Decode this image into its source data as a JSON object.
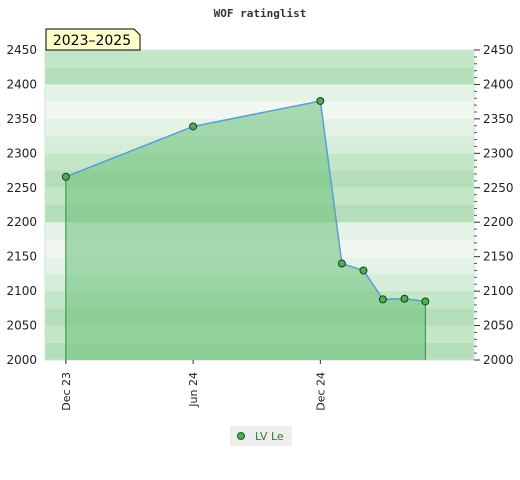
{
  "chart_data": {
    "type": "area",
    "title": "WOF ratinglist",
    "period_label": "2023–2025",
    "ylim": [
      2000,
      2450
    ],
    "yticks": [
      2000,
      2050,
      2100,
      2150,
      2200,
      2250,
      2300,
      2350,
      2400,
      2450
    ],
    "xlim": [
      "2023-11-01",
      "2025-07-10"
    ],
    "xticks": [
      {
        "date": "2023-12-01",
        "label": "Dec 23"
      },
      {
        "date": "2024-06-01",
        "label": "Jun 24"
      },
      {
        "date": "2024-12-01",
        "label": "Dec 24"
      }
    ],
    "series": [
      {
        "name": "LV Le",
        "color": "#5a9fd4",
        "fill": "#6cbf7a",
        "points": [
          {
            "x": "2023-12-01",
            "y": 2266
          },
          {
            "x": "2024-06-01",
            "y": 2339
          },
          {
            "x": "2024-12-01",
            "y": 2376
          },
          {
            "x": "2025-01-01",
            "y": 2140
          },
          {
            "x": "2025-02-01",
            "y": 2130
          },
          {
            "x": "2025-03-01",
            "y": 2088
          },
          {
            "x": "2025-04-01",
            "y": 2089
          },
          {
            "x": "2025-05-01",
            "y": 2085
          }
        ]
      }
    ],
    "grid": true,
    "legend": "bottom-center",
    "legend_entries": [
      "LV Le"
    ]
  }
}
